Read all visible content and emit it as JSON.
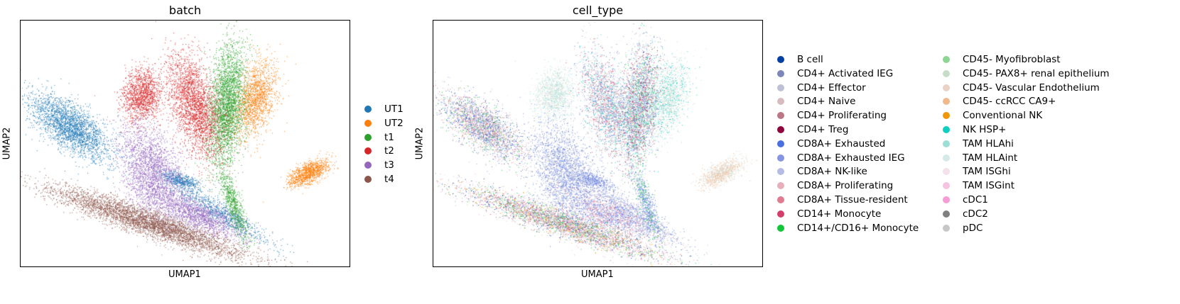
{
  "chart_data": [
    {
      "type": "scatter",
      "title": "batch",
      "xlabel": "UMAP1",
      "ylabel": "UMAP2",
      "grid": false,
      "legend_placement": "right",
      "series": [
        {
          "name": "UT1",
          "color": "#1f77b4"
        },
        {
          "name": "UT2",
          "color": "#ff7f0e"
        },
        {
          "name": "t1",
          "color": "#2ca02c"
        },
        {
          "name": "t2",
          "color": "#d62728"
        },
        {
          "name": "t3",
          "color": "#9467bd"
        },
        {
          "name": "t4",
          "color": "#8c564b"
        }
      ]
    },
    {
      "type": "scatter",
      "title": "cell_type",
      "xlabel": "UMAP1",
      "ylabel": "UMAP2",
      "grid": false,
      "legend_placement": "right",
      "series": [
        {
          "name": "B cell",
          "color": "#023fa5"
        },
        {
          "name": "CD4+ Activated IEG",
          "color": "#7d87b9"
        },
        {
          "name": "CD4+ Effector",
          "color": "#bec1d4"
        },
        {
          "name": "CD4+ Naive",
          "color": "#d6bcc0"
        },
        {
          "name": "CD4+ Proliferating",
          "color": "#bb7784"
        },
        {
          "name": "CD4+ Treg",
          "color": "#8e063b"
        },
        {
          "name": "CD8A+ Exhausted",
          "color": "#4a6fe3"
        },
        {
          "name": "CD8A+ Exhausted IEG",
          "color": "#8595e1"
        },
        {
          "name": "CD8A+ NK-like",
          "color": "#b5bbe3"
        },
        {
          "name": "CD8A+ Proliferating",
          "color": "#e6afb9"
        },
        {
          "name": "CD8A+ Tissue-resident",
          "color": "#e07b91"
        },
        {
          "name": "CD14+ Monocyte",
          "color": "#d33f6a"
        },
        {
          "name": "CD14+/CD16+ Monocyte",
          "color": "#11c638"
        },
        {
          "name": "CD45- Myofibroblast",
          "color": "#8dd593"
        },
        {
          "name": "CD45- PAX8+ renal epithelium",
          "color": "#c6dec7"
        },
        {
          "name": "CD45- Vascular Endothelium",
          "color": "#ead3c6"
        },
        {
          "name": "CD45- ccRCC CA9+",
          "color": "#f0b98d"
        },
        {
          "name": "Conventional NK",
          "color": "#ef9708"
        },
        {
          "name": "NK HSP+",
          "color": "#0fcfc0"
        },
        {
          "name": "TAM HLAhi",
          "color": "#9cded6"
        },
        {
          "name": "TAM HLAint",
          "color": "#d5eae7"
        },
        {
          "name": "TAM ISGhi",
          "color": "#f3e1eb"
        },
        {
          "name": "TAM ISGint",
          "color": "#f6c4e1"
        },
        {
          "name": "cDC1",
          "color": "#f79cd4"
        },
        {
          "name": "cDC2",
          "color": "#7f7f7f"
        },
        {
          "name": "pDC",
          "color": "#c7c7c7"
        }
      ]
    }
  ]
}
